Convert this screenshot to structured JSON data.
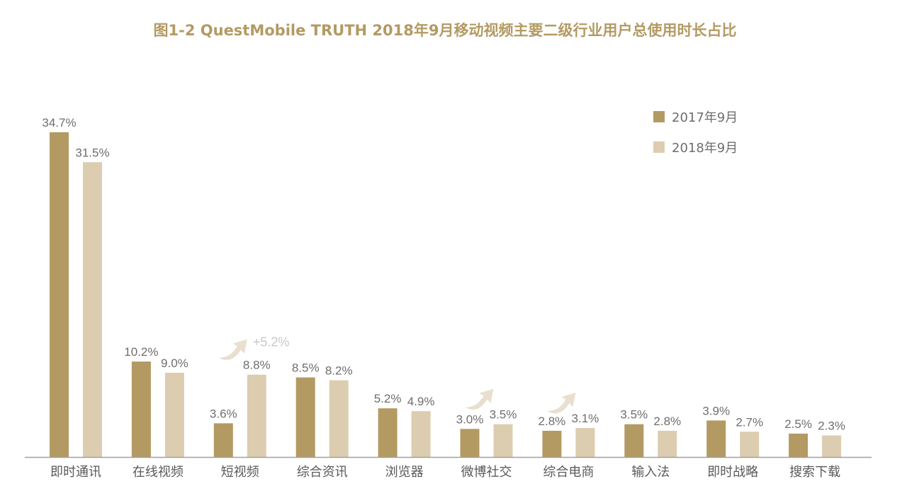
{
  "chart_data": {
    "type": "bar",
    "title": "图1-2   QuestMobile  TRUTH 2018年9月移动视频主要二级行业用户总使用时长占比",
    "xlabel": "",
    "ylabel": "",
    "ylim": [
      0,
      36
    ],
    "grid": false,
    "legend_position": "top-right",
    "categories": [
      "即时通讯",
      "在线视频",
      "短视频",
      "综合资讯",
      "浏览器",
      "微博社交",
      "综合电商",
      "输入法",
      "即时战略",
      "搜索下载"
    ],
    "series": [
      {
        "name": "2017年9月",
        "color": "#b39a63",
        "values": [
          34.7,
          10.2,
          3.6,
          8.5,
          5.2,
          3.0,
          2.8,
          3.5,
          3.9,
          2.5
        ],
        "labels": [
          "34.7%",
          "10.2%",
          "3.6%",
          "8.5%",
          "5.2%",
          "3.0%",
          "2.8%",
          "3.5%",
          "3.9%",
          "2.5%"
        ]
      },
      {
        "name": "2018年9月",
        "color": "#dccdb0",
        "values": [
          31.5,
          9.0,
          8.8,
          8.2,
          4.9,
          3.5,
          3.1,
          2.8,
          2.7,
          2.3
        ],
        "labels": [
          "31.5%",
          "9.0%",
          "8.8%",
          "8.2%",
          "4.9%",
          "3.5%",
          "3.1%",
          "2.8%",
          "2.7%",
          "2.3%"
        ]
      }
    ],
    "annotations": [
      {
        "category": "短视频",
        "icon": "up-arrow-icon",
        "text": "+5.2%"
      },
      {
        "category": "微博社交",
        "icon": "up-arrow-icon",
        "text": ""
      },
      {
        "category": "综合电商",
        "icon": "up-arrow-icon",
        "text": ""
      }
    ],
    "axis_color": "#a0a0a0",
    "arrow_color": "#e8dfcf"
  }
}
